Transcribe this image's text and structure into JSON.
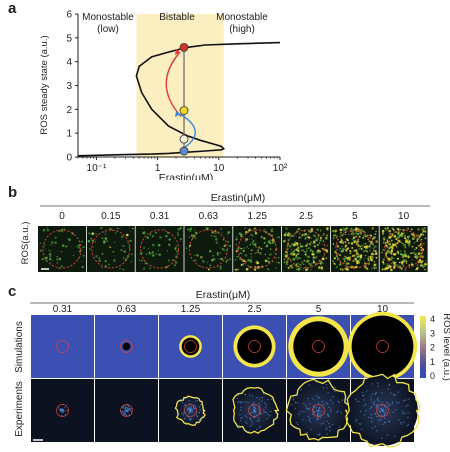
{
  "panel_a": {
    "letter": "a",
    "regions": [
      "Monostable\n(low)",
      "Bistable",
      "Monostable\n(high)"
    ],
    "region_colors": {
      "bistable_band": "#fbeec0"
    },
    "chart_data": {
      "type": "line",
      "xlabel": "Erastin(μM)",
      "ylabel": "ROS steady state (a.u.)",
      "xscale": "log",
      "xlim": [
        0.05,
        100
      ],
      "ylim": [
        0,
        6
      ],
      "x_tick_labels": [
        "10⁻¹",
        "1",
        "10",
        "10²"
      ],
      "x_ticks": [
        0.1,
        1,
        10,
        100
      ],
      "y_ticks": [
        0,
        1,
        2,
        3,
        4,
        5,
        6
      ],
      "bistable_range": [
        0.45,
        12
      ],
      "series": [
        {
          "name": "",
          "x": [
            0.05,
            0.3,
            0.8,
            1.5,
            3.0,
            6.0,
            11.0,
            12.0,
            11.0,
            8.0,
            5.0,
            3.0,
            1.5,
            0.8,
            0.55,
            0.45,
            0.5,
            0.8,
            1.5,
            3.0,
            6.0,
            20.0,
            100.0
          ],
          "y": [
            0.05,
            0.1,
            0.12,
            0.15,
            0.2,
            0.25,
            0.3,
            0.35,
            0.45,
            0.55,
            0.7,
            0.9,
            1.3,
            2.0,
            2.7,
            3.4,
            3.8,
            4.2,
            4.4,
            4.6,
            4.7,
            4.75,
            4.8
          ]
        }
      ],
      "markers": [
        {
          "x": 2.7,
          "y": 4.6,
          "color": "#d2332b"
        },
        {
          "x": 2.7,
          "y": 1.95,
          "color": "#f2d72a"
        },
        {
          "x": 2.7,
          "y": 0.75,
          "color": "#f5f0dc"
        },
        {
          "x": 2.7,
          "y": 0.25,
          "color": "#5a8bd0"
        }
      ],
      "arrows": [
        {
          "from_y": 1.7,
          "to_y": 4.4,
          "color": "#e23a3a"
        },
        {
          "from_y": 0.3,
          "to_y": 1.8,
          "color": "#3a88d9"
        }
      ]
    }
  },
  "panel_b": {
    "letter": "b",
    "title": "Erastin(μM)",
    "ylabel": "ROS(a.u.)",
    "concentrations": [
      "0",
      "0.15",
      "0.31",
      "0.63",
      "1.25",
      "2.5",
      "5",
      "10"
    ],
    "density": [
      0.05,
      0.06,
      0.06,
      0.1,
      0.35,
      0.7,
      0.85,
      0.9
    ]
  },
  "panel_c": {
    "letter": "c",
    "title": "Erastin(μM)",
    "concentrations": [
      "0.31",
      "0.63",
      "1.25",
      "2.5",
      "5",
      "10"
    ],
    "row_labels": [
      "Simulations",
      "Experiments"
    ],
    "sim_black_radius": [
      0,
      0.12,
      0.28,
      0.55,
      0.8,
      0.98
    ],
    "sim_yellow_width": [
      0,
      0,
      0.08,
      0.12,
      0.16,
      0.12
    ],
    "colorbar": {
      "label": "ROS level (a.u.)",
      "ticks": [
        "4",
        "3",
        "2",
        "1",
        "0"
      ],
      "colors": [
        "#f7e84a",
        "#b8c88a",
        "#9e7a86",
        "#4b4f9a",
        "#2e4db5"
      ]
    }
  }
}
